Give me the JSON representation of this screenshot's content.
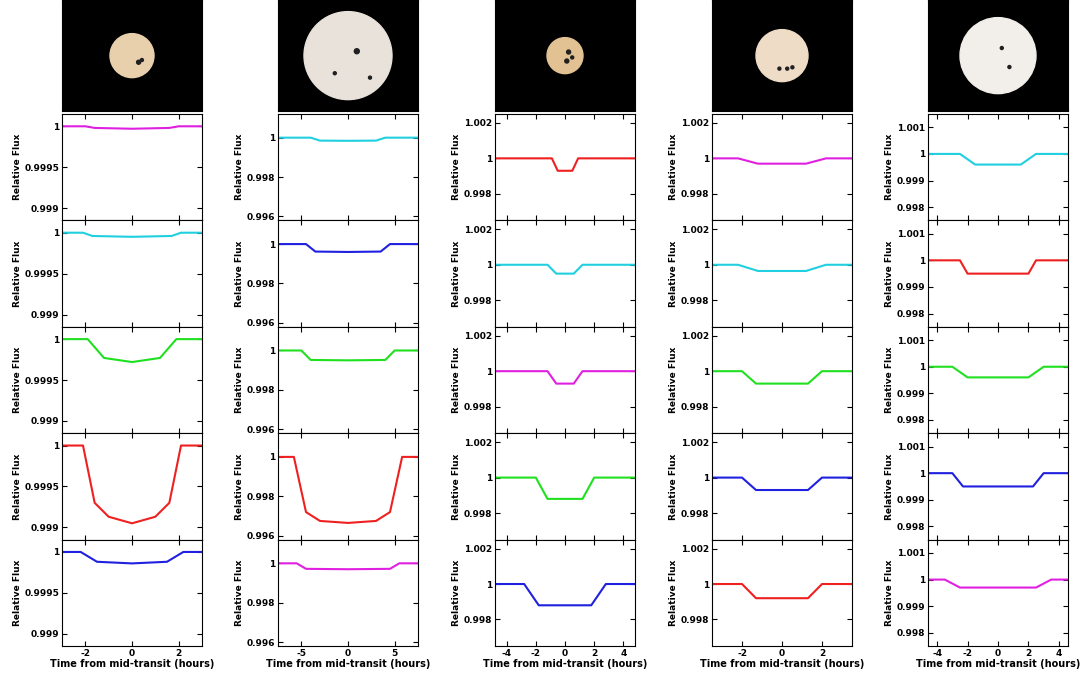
{
  "chart_data": [
    {
      "type": "line",
      "xlabel": "Time from mid-transit (hours)",
      "ylabel": "Relative Flux",
      "xlim": [
        -3,
        3
      ],
      "xticks": [
        -2,
        0,
        2
      ],
      "ylim": [
        0.99885,
        1.00015
      ],
      "yticks": [
        0.999,
        0.9995,
        1
      ],
      "panels": [
        {
          "color": "#e020e0",
          "x": [
            -3,
            -2,
            -1.6,
            0,
            1.6,
            2,
            3
          ],
          "values": [
            1,
            1,
            0.99998,
            0.99997,
            0.99998,
            1,
            1
          ]
        },
        {
          "color": "#20d0e0",
          "x": [
            -3,
            -2.1,
            -1.7,
            0,
            1.7,
            2.1,
            3
          ],
          "values": [
            1,
            1,
            0.99996,
            0.99995,
            0.99996,
            1,
            1
          ]
        },
        {
          "color": "#20e020",
          "x": [
            -3,
            -1.9,
            -1.2,
            0,
            1.2,
            1.9,
            3
          ],
          "values": [
            1,
            1,
            0.99977,
            0.99972,
            0.99977,
            1,
            1
          ]
        },
        {
          "color": "#ee2020",
          "x": [
            -3,
            -2.1,
            -1.6,
            -1.0,
            0,
            1.0,
            1.6,
            2.1,
            3
          ],
          "values": [
            1,
            1,
            0.9993,
            0.99913,
            0.99905,
            0.99913,
            0.9993,
            1,
            1
          ]
        },
        {
          "color": "#2020e0",
          "x": [
            -3,
            -2.2,
            -1.5,
            0,
            1.5,
            2.2,
            3
          ],
          "values": [
            1,
            1,
            0.99988,
            0.99986,
            0.99988,
            1,
            1
          ]
        }
      ]
    },
    {
      "type": "line",
      "xlabel": "Time from mid-transit (hours)",
      "ylabel": "Relative Flux",
      "xlim": [
        -7.5,
        7.5
      ],
      "xticks": [
        -5,
        0,
        5
      ],
      "ylim": [
        0.9958,
        1.0012
      ],
      "yticks": [
        0.996,
        0.998,
        1
      ],
      "panels": [
        {
          "color": "#20d0e0",
          "x": [
            -7.5,
            -4,
            -3,
            0,
            3,
            4,
            7.5
          ],
          "values": [
            1,
            1,
            0.99985,
            0.99984,
            0.99985,
            1,
            1
          ]
        },
        {
          "color": "#2020e0",
          "x": [
            -7.5,
            -4.5,
            -3.5,
            0,
            3.5,
            4.5,
            7.5
          ],
          "values": [
            1,
            1,
            0.99962,
            0.9996,
            0.99962,
            1,
            1
          ]
        },
        {
          "color": "#20e020",
          "x": [
            -7.5,
            -5,
            -4,
            0,
            4,
            5,
            7.5
          ],
          "values": [
            1,
            1,
            0.99952,
            0.9995,
            0.99952,
            1,
            1
          ]
        },
        {
          "color": "#ee2020",
          "x": [
            -7.5,
            -5.8,
            -4.5,
            -3,
            0,
            3,
            4.5,
            5.8,
            7.5
          ],
          "values": [
            1,
            1,
            0.9972,
            0.99675,
            0.99665,
            0.99675,
            0.9972,
            1,
            1
          ]
        },
        {
          "color": "#e020e0",
          "x": [
            -7.5,
            -5.5,
            -4.5,
            0,
            4.5,
            5.5,
            7.5
          ],
          "values": [
            1,
            1,
            0.99972,
            0.9997,
            0.99972,
            1,
            1
          ]
        }
      ]
    },
    {
      "type": "line",
      "xlabel": "Time from mid-transit (hours)",
      "ylabel": "Relative Flux",
      "xlim": [
        -4.8,
        4.8
      ],
      "xticks": [
        -4,
        -2,
        0,
        2,
        4
      ],
      "ylim": [
        0.9965,
        1.0025
      ],
      "yticks": [
        0.998,
        1,
        1.002
      ],
      "panels": [
        {
          "color": "#ee2020",
          "x": [
            -4.8,
            -0.9,
            -0.5,
            0,
            0.5,
            0.9,
            4.8
          ],
          "values": [
            1,
            1,
            0.9993,
            0.9993,
            0.9993,
            1,
            1
          ]
        },
        {
          "color": "#20d0e0",
          "x": [
            -4.8,
            -1.2,
            -0.6,
            0,
            0.6,
            1.2,
            4.8
          ],
          "values": [
            1,
            1,
            0.9995,
            0.9995,
            0.9995,
            1,
            1
          ]
        },
        {
          "color": "#e020e0",
          "x": [
            -4.8,
            -1.2,
            -0.6,
            0,
            0.6,
            1.2,
            4.8
          ],
          "values": [
            1,
            1,
            0.9993,
            0.9993,
            0.9993,
            1,
            1
          ]
        },
        {
          "color": "#20e020",
          "x": [
            -4.8,
            -2,
            -1.2,
            0,
            1.2,
            2,
            4.8
          ],
          "values": [
            1,
            1,
            0.9988,
            0.9988,
            0.9988,
            1,
            1
          ]
        },
        {
          "color": "#2020e0",
          "x": [
            -4.8,
            -2.8,
            -1.8,
            0,
            1.8,
            2.8,
            4.8
          ],
          "values": [
            1,
            1,
            0.9988,
            0.9988,
            0.9988,
            1,
            1
          ]
        }
      ]
    },
    {
      "type": "line",
      "xlabel": "Time from mid-transit (hours)",
      "ylabel": "Relative Flux",
      "xlim": [
        -3.5,
        3.5
      ],
      "xticks": [
        -2,
        0,
        2
      ],
      "ylim": [
        0.9965,
        1.0025
      ],
      "yticks": [
        0.998,
        1,
        1.002
      ],
      "panels": [
        {
          "color": "#e020e0",
          "x": [
            -3.5,
            -2.2,
            -1.2,
            0,
            1.2,
            2.2,
            3.5
          ],
          "values": [
            1,
            1,
            0.9997,
            0.9997,
            0.9997,
            1,
            1
          ]
        },
        {
          "color": "#20d0e0",
          "x": [
            -3.5,
            -2.2,
            -1.2,
            0,
            1.2,
            2.2,
            3.5
          ],
          "values": [
            1,
            1,
            0.99965,
            0.99965,
            0.99965,
            1,
            1
          ]
        },
        {
          "color": "#20e020",
          "x": [
            -3.5,
            -2,
            -1.3,
            0,
            1.3,
            2,
            3.5
          ],
          "values": [
            1,
            1,
            0.9993,
            0.9993,
            0.9993,
            1,
            1
          ]
        },
        {
          "color": "#2020e0",
          "x": [
            -3.5,
            -2,
            -1.3,
            0,
            1.3,
            2,
            3.5
          ],
          "values": [
            1,
            1,
            0.9993,
            0.9993,
            0.9993,
            1,
            1
          ]
        },
        {
          "color": "#ee2020",
          "x": [
            -3.5,
            -2,
            -1.3,
            0,
            1.3,
            2,
            3.5
          ],
          "values": [
            1,
            1,
            0.9992,
            0.9992,
            0.9992,
            1,
            1
          ]
        }
      ]
    },
    {
      "type": "line",
      "xlabel": "Time from mid-transit (hours)",
      "ylabel": "Relative Flux",
      "xlim": [
        -4.6,
        4.6
      ],
      "xticks": [
        -4,
        -2,
        0,
        2,
        4
      ],
      "ylim": [
        0.9975,
        1.0015
      ],
      "yticks": [
        0.998,
        0.999,
        1,
        1.001
      ],
      "panels": [
        {
          "color": "#20d0e0",
          "x": [
            -4.6,
            -2.5,
            -1.5,
            0,
            1.5,
            2.5,
            4.6
          ],
          "values": [
            1,
            1,
            0.9996,
            0.9996,
            0.9996,
            1,
            1
          ]
        },
        {
          "color": "#ee2020",
          "x": [
            -4.6,
            -2.5,
            -2,
            0,
            2,
            2.5,
            4.6
          ],
          "values": [
            1,
            1,
            0.9995,
            0.9995,
            0.9995,
            1,
            1
          ]
        },
        {
          "color": "#20e020",
          "x": [
            -4.6,
            -3,
            -2,
            0,
            2,
            3,
            4.6
          ],
          "values": [
            1,
            1,
            0.9996,
            0.9996,
            0.9996,
            1,
            1
          ]
        },
        {
          "color": "#2020e0",
          "x": [
            -4.6,
            -3,
            -2.3,
            0,
            2.3,
            3,
            4.6
          ],
          "values": [
            1,
            1,
            0.9995,
            0.9995,
            0.9995,
            1,
            1
          ]
        },
        {
          "color": "#e020e0",
          "x": [
            -4.6,
            -3.5,
            -2.5,
            0,
            2.5,
            3.5,
            4.6
          ],
          "values": [
            1,
            1,
            0.9997,
            0.9997,
            0.9997,
            1,
            1
          ]
        }
      ]
    }
  ]
}
